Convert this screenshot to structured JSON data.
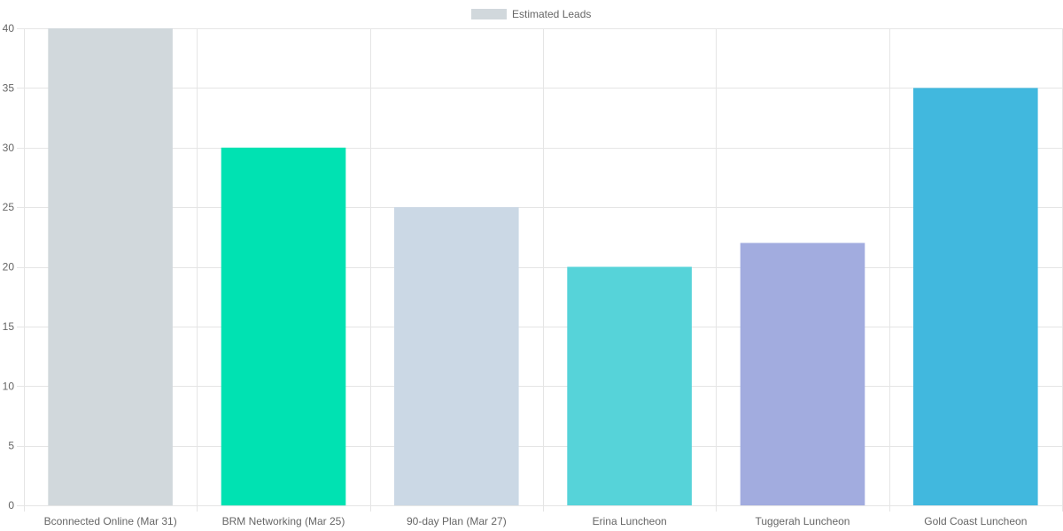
{
  "chart_data": {
    "type": "bar",
    "categories": [
      "Bconnected Online (Mar 31)",
      "BRM Networking (Mar 25)",
      "90-day Plan (Mar 27)",
      "Erina Luncheon",
      "Tuggerah Luncheon",
      "Gold Coast Luncheon"
    ],
    "series": [
      {
        "name": "Estimated Leads",
        "values": [
          40,
          30,
          25,
          20,
          22,
          35
        ],
        "colors": [
          "#d1d8dc",
          "#00e2b2",
          "#cbd8e5",
          "#56d3d9",
          "#a2acdf",
          "#41b8de"
        ]
      }
    ],
    "ylim": [
      0,
      40
    ],
    "yticks": [
      0,
      5,
      10,
      15,
      20,
      25,
      30,
      35,
      40
    ],
    "grid": true,
    "legend_position": "top",
    "legend_swatch_color": "#d1d8dc",
    "gridline_color": "#e5e5e5",
    "text_color": "#666666"
  }
}
